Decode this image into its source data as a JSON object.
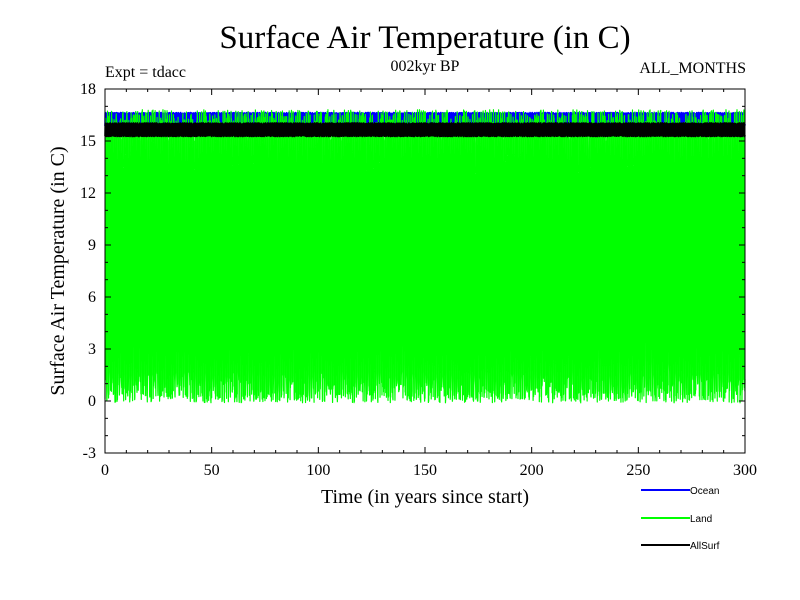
{
  "chart_data": {
    "type": "line",
    "title": "Surface Air Temperature (in C)",
    "subtitle_left": "Expt = tdacc",
    "subtitle_center": "002kyr BP",
    "subtitle_right": "ALL_MONTHS",
    "xlabel": "Time (in years since start)",
    "ylabel": "Surface Air Temperature (in C)",
    "xlim": [
      0,
      300
    ],
    "ylim": [
      -3,
      18
    ],
    "xticks": [
      0,
      50,
      100,
      150,
      200,
      250,
      300
    ],
    "yticks": [
      -3,
      0,
      3,
      6,
      9,
      12,
      15,
      18
    ],
    "xtick_labels": [
      "0",
      "50",
      "100",
      "150",
      "200",
      "250",
      "300"
    ],
    "ytick_labels": [
      "-3",
      "0",
      "3",
      "6",
      "9",
      "12",
      "15",
      "18"
    ],
    "legend_position": "bottom-right",
    "series": [
      {
        "name": "Ocean",
        "color": "#0000ff",
        "low": 15.9,
        "high": 16.6,
        "note": "monthly values, narrow seasonal cycle"
      },
      {
        "name": "Land",
        "color": "#00ff00",
        "low": 0.8,
        "high": 15.9,
        "note": "monthly values, large seasonal cycle"
      },
      {
        "name": "AllSurf",
        "color": "#000000",
        "low": 15.3,
        "high": 16.0,
        "note": "monthly values"
      }
    ]
  }
}
